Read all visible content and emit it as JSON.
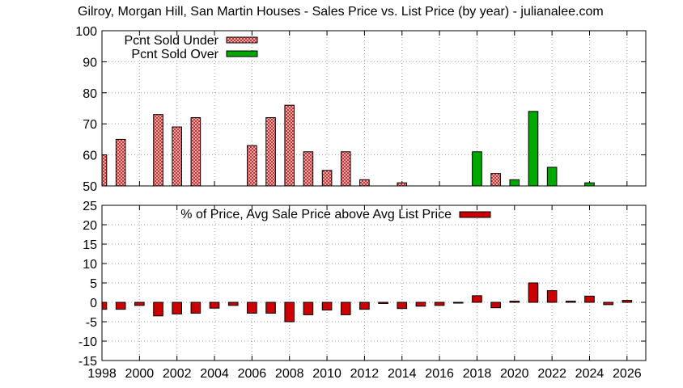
{
  "title": "Gilroy, Morgan Hill, San Martin Houses - Sales Price vs. List Price (by year) - julianalee.com",
  "colors": {
    "under_fill": "#f2c8c8",
    "under_hatch": "#c01818",
    "over": "#00a800",
    "avg": "#cc0000",
    "grid": "#a0a0a0"
  },
  "chart_data": [
    {
      "type": "bar",
      "title": "",
      "xlabel": "",
      "ylabel": "",
      "xlim": [
        1998,
        2027
      ],
      "ylim": [
        50,
        100
      ],
      "yticks": [
        50,
        60,
        70,
        80,
        90,
        100
      ],
      "grid": true,
      "legend_position": "top-left",
      "series": [
        {
          "name": "Pcnt Sold Under",
          "x": [
            1998,
            1999,
            2001,
            2002,
            2003,
            2006,
            2007,
            2008,
            2009,
            2010,
            2011,
            2012,
            2014,
            2019
          ],
          "values": [
            60,
            65,
            73,
            69,
            72,
            63,
            72,
            76,
            61,
            55,
            61,
            52,
            51,
            54
          ]
        },
        {
          "name": "Pcnt Sold Over",
          "x": [
            2018,
            2020,
            2021,
            2022,
            2024
          ],
          "values": [
            61,
            52,
            74,
            56,
            51
          ]
        }
      ]
    },
    {
      "type": "bar",
      "title": "",
      "xlabel": "",
      "ylabel": "",
      "xlim": [
        1998,
        2027
      ],
      "ylim": [
        -15,
        25
      ],
      "yticks": [
        -15,
        -10,
        -5,
        0,
        5,
        10,
        15,
        20,
        25
      ],
      "xticks": [
        "1998",
        "2000",
        "2002",
        "2004",
        "2006",
        "2008",
        "2010",
        "2012",
        "2014",
        "2016",
        "2018",
        "2020",
        "2022",
        "2024",
        "2026"
      ],
      "grid": true,
      "legend_position": "top-center",
      "series": [
        {
          "name": "% of Price, Avg Sale Price above Avg List Price",
          "x": [
            1998,
            1999,
            2000,
            2001,
            2002,
            2003,
            2004,
            2005,
            2006,
            2007,
            2008,
            2009,
            2010,
            2011,
            2012,
            2013,
            2014,
            2015,
            2016,
            2017,
            2018,
            2019,
            2020,
            2021,
            2022,
            2023,
            2024,
            2025,
            2026
          ],
          "values": [
            -1.8,
            -1.8,
            -0.8,
            -3.5,
            -3.0,
            -2.8,
            -1.5,
            -0.8,
            -2.8,
            -2.8,
            -5.0,
            -3.2,
            -2.0,
            -3.2,
            -1.8,
            -0.3,
            -1.6,
            -1.0,
            -0.8,
            -0.1,
            1.7,
            -1.4,
            0.3,
            5.0,
            3.0,
            0.3,
            1.6,
            -0.6,
            0.5
          ]
        }
      ]
    }
  ]
}
